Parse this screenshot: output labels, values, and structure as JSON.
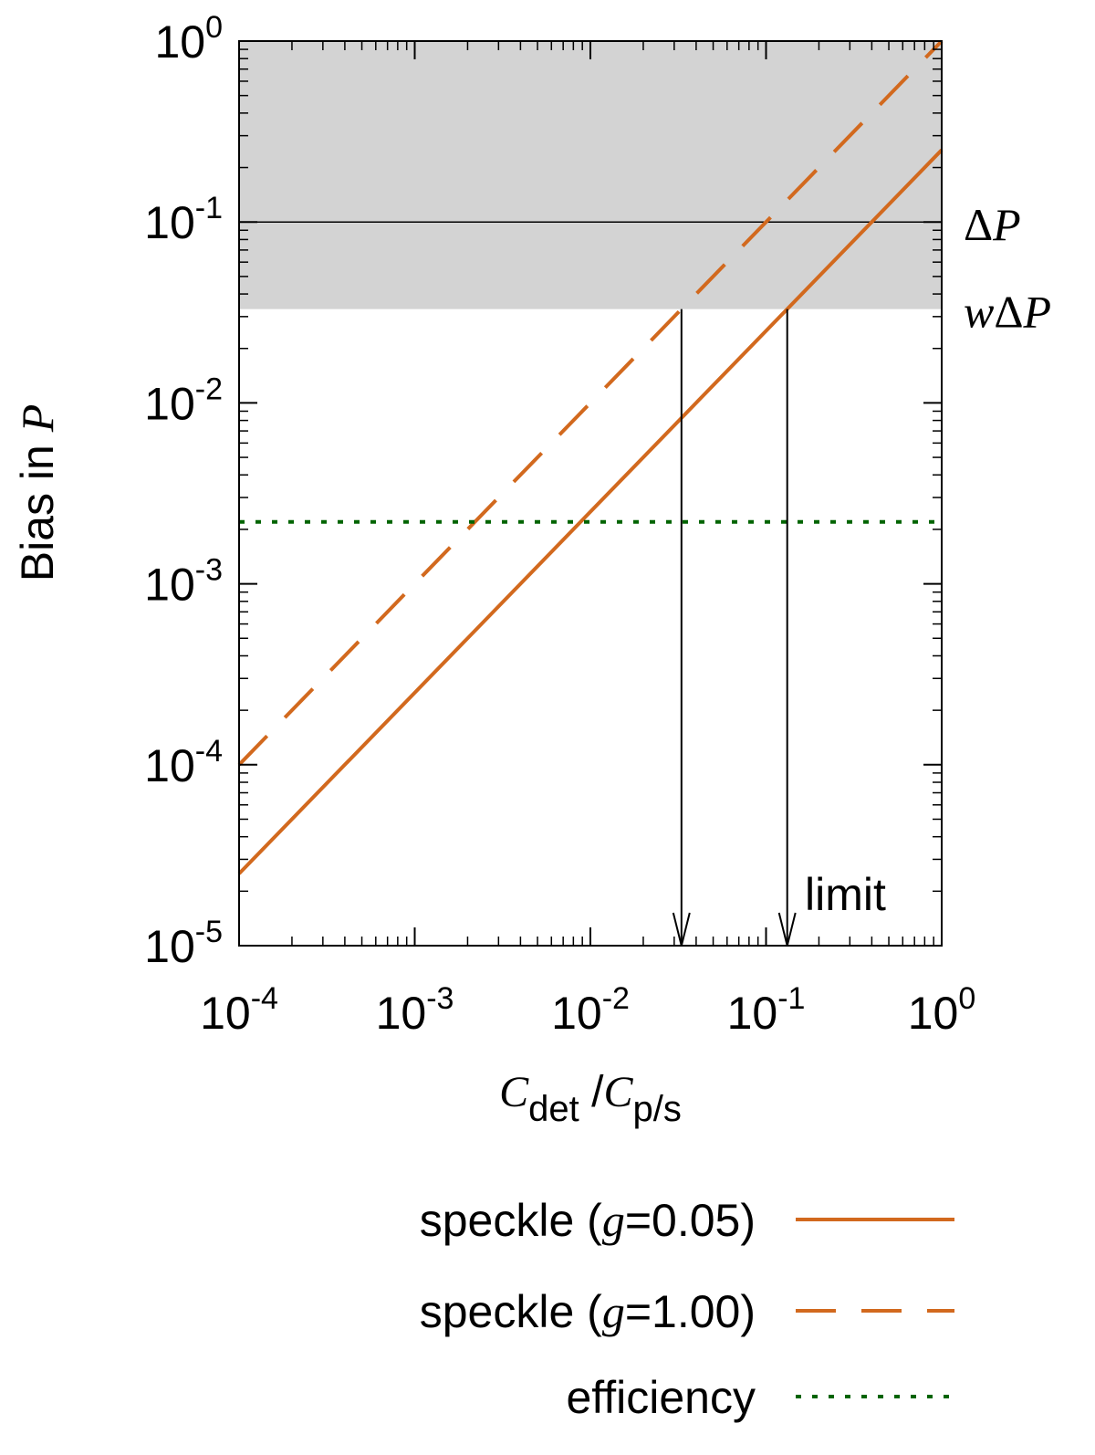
{
  "chart_data": {
    "type": "line",
    "xscale": "log",
    "yscale": "log",
    "xlim": [
      0.0001,
      1
    ],
    "ylim": [
      1e-05,
      1
    ],
    "xlabel": {
      "main": "C",
      "sub1": "det",
      "slash": " /C",
      "sub2": "p/s"
    },
    "ylabel": {
      "main": "Bias in ",
      "var": "P"
    },
    "x_ticks": [
      {
        "value": 0.0001,
        "base": "10",
        "exp": "-4"
      },
      {
        "value": 0.001,
        "base": "10",
        "exp": "-3"
      },
      {
        "value": 0.01,
        "base": "10",
        "exp": "-2"
      },
      {
        "value": 0.1,
        "base": "10",
        "exp": "-1"
      },
      {
        "value": 1,
        "base": "10",
        "exp": "0"
      }
    ],
    "y_ticks": [
      {
        "value": 1,
        "base": "10",
        "exp": "0"
      },
      {
        "value": 0.1,
        "base": "10",
        "exp": "-1"
      },
      {
        "value": 0.01,
        "base": "10",
        "exp": "-2"
      },
      {
        "value": 0.001,
        "base": "10",
        "exp": "-3"
      },
      {
        "value": 0.0001,
        "base": "10",
        "exp": "-4"
      },
      {
        "value": 1e-05,
        "base": "10",
        "exp": "-5"
      }
    ],
    "shaded_region": {
      "y_from": 0.033,
      "y_to": 1,
      "color": "#d3d3d3"
    },
    "reference_lines": [
      {
        "y": 0.1,
        "label_sym": "Δ",
        "label_var": "P",
        "label_prefix": ""
      },
      {
        "y": 0.033,
        "label_sym": "Δ",
        "label_var": "P",
        "label_prefix": "w"
      }
    ],
    "series": [
      {
        "name_prefix": "speckle (",
        "name_var": "g",
        "name_suffix": "=0.05)",
        "style": "solid",
        "color": "#d2691e",
        "x": [
          0.0001,
          1
        ],
        "y": [
          2.5e-05,
          0.25
        ]
      },
      {
        "name_prefix": "speckle (",
        "name_var": "g",
        "name_suffix": "=1.00)",
        "style": "dashed",
        "color": "#d2691e",
        "x": [
          0.0001,
          1
        ],
        "y": [
          0.0001,
          1
        ]
      },
      {
        "name_prefix": "efficiency",
        "name_var": "",
        "name_suffix": "",
        "style": "dotted",
        "color": "#006400",
        "x": [
          0.0001,
          1
        ],
        "y": [
          0.0022,
          0.0022
        ]
      }
    ],
    "arrows": [
      {
        "x": 0.033,
        "y_from": 0.033,
        "y_to": 1e-05
      },
      {
        "x": 0.132,
        "y_from": 0.033,
        "y_to": 1e-05
      }
    ],
    "annotation": {
      "text": "limit",
      "x": 0.2,
      "y": 1.8e-05
    },
    "legend_position": "below"
  }
}
